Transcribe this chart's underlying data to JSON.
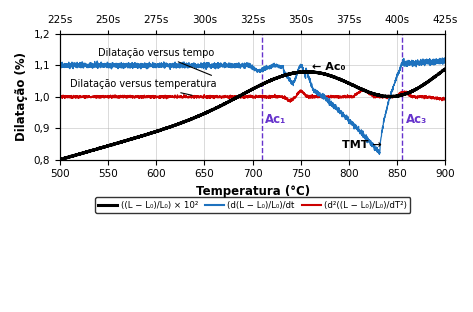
{
  "xlim": [
    500,
    900
  ],
  "ylim": [
    0.8,
    1.2
  ],
  "xlabel": "Temperatura (°C)",
  "ylabel": "Dilatação (%)",
  "xticks": [
    500,
    550,
    600,
    650,
    700,
    750,
    800,
    850,
    900
  ],
  "yticks": [
    0.8,
    0.9,
    1.0,
    1.1,
    1.2
  ],
  "top_axis_ticks": [
    225,
    250,
    275,
    300,
    325,
    350,
    375,
    400,
    425
  ],
  "top_axis_labels": [
    "225s",
    "250s",
    "275s",
    "300s",
    "325s",
    "350s",
    "375s",
    "400s",
    "425s"
  ],
  "vline1_x": 710,
  "vline2_x": 855,
  "vline_color": "#6633cc",
  "ac1_label": "Ac₁",
  "ac3_label": "Ac₃",
  "ac0_label": "← Ac₀",
  "tmt_label": "TMT →",
  "label_dilatacao_tempo": "Dilatação versus tempo",
  "label_dilatacao_temp": "Dilatação versus temperatura",
  "legend_black": "((L − L₀)/L₀) × 10²",
  "legend_blue": "(d(L − L₀)/L₀)/dt",
  "legend_red": "(d²((L − L₀)/L₀)/dT²)",
  "black_color": "#000000",
  "blue_color": "#1e72be",
  "red_color": "#cc0000",
  "background_color": "#ffffff",
  "grid_color": "#aaaaaa"
}
